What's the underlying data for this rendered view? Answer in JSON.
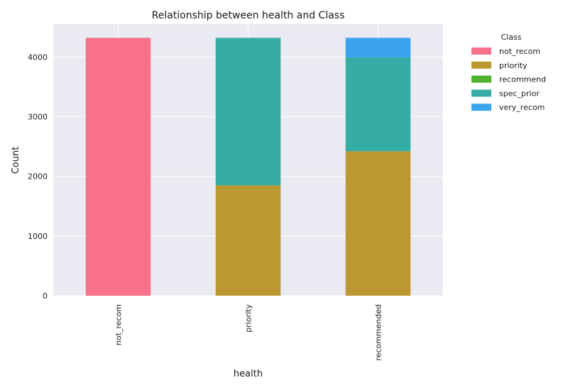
{
  "chart_data": {
    "type": "bar",
    "stacked": true,
    "title": "Relationship between health and Class",
    "xlabel": "health",
    "ylabel": "Count",
    "categories": [
      "not_recom",
      "priority",
      "recommended"
    ],
    "ylim": [
      0,
      4550
    ],
    "yticks": [
      0,
      1000,
      2000,
      3000,
      4000
    ],
    "grid": true,
    "legend": {
      "title": "Class",
      "placement": "outside-top-right"
    },
    "series": [
      {
        "name": "not_recom",
        "color": "#f77189",
        "values": [
          4320,
          0,
          0
        ]
      },
      {
        "name": "priority",
        "color": "#bb9832",
        "values": [
          0,
          1848,
          2418
        ]
      },
      {
        "name": "recommend",
        "color": "#50b131",
        "values": [
          0,
          0,
          2
        ]
      },
      {
        "name": "spec_prior",
        "color": "#36ada4",
        "values": [
          0,
          2472,
          1572
        ]
      },
      {
        "name": "very_recom",
        "color": "#3ba3ec",
        "values": [
          0,
          0,
          328
        ]
      }
    ]
  }
}
